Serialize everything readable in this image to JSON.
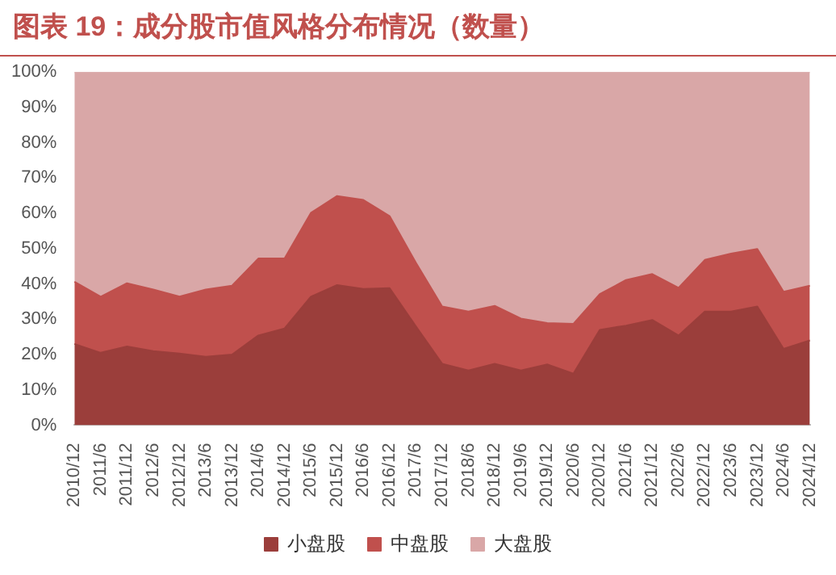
{
  "chart_data": {
    "type": "area",
    "title": "图表 19：成分股市值风格分布情况（数量）",
    "stacked": true,
    "legend": "bottom",
    "categories": [
      "2010/12",
      "2011/6",
      "2011/12",
      "2012/6",
      "2012/12",
      "2013/6",
      "2013/12",
      "2014/6",
      "2014/12",
      "2015/6",
      "2015/12",
      "2016/6",
      "2016/12",
      "2017/6",
      "2017/12",
      "2018/6",
      "2018/12",
      "2019/6",
      "2019/12",
      "2020/6",
      "2020/12",
      "2021/6",
      "2021/12",
      "2022/6",
      "2022/12",
      "2023/6",
      "2023/12",
      "2024/6",
      "2024/12"
    ],
    "ylim": [
      0,
      100
    ],
    "yticks": [
      {
        "value": 0,
        "label": "0%"
      },
      {
        "value": 10,
        "label": "10%"
      },
      {
        "value": 20,
        "label": "20%"
      },
      {
        "value": 30,
        "label": "30%"
      },
      {
        "value": 40,
        "label": "40%"
      },
      {
        "value": 50,
        "label": "50%"
      },
      {
        "value": 60,
        "label": "60%"
      },
      {
        "value": 70,
        "label": "70%"
      },
      {
        "value": 80,
        "label": "80%"
      },
      {
        "value": 90,
        "label": "90%"
      },
      {
        "value": 100,
        "label": "100%"
      }
    ],
    "series": [
      {
        "name": "小盘股",
        "color": "#9b3e3b",
        "values": [
          23,
          20.5,
          22.3,
          21,
          20.3,
          19.4,
          20,
          25.4,
          27.4,
          36.4,
          39.7,
          38.6,
          38.8,
          28,
          17.4,
          15.5,
          17.4,
          15.5,
          17.2,
          14.6,
          27,
          28.2,
          29.8,
          25.4,
          32.2,
          32.2,
          33.6,
          21.6,
          24
        ]
      },
      {
        "name": "中盘股",
        "color": "#c0504d",
        "values": [
          17.6,
          15.9,
          17.9,
          17.4,
          16.1,
          19,
          19.5,
          21.8,
          19.8,
          23.7,
          25.2,
          25.2,
          20.4,
          18,
          16.2,
          16.7,
          16.4,
          14.7,
          11.7,
          14.1,
          10.1,
          12.9,
          13,
          13.5,
          14.6,
          16.4,
          16.3,
          16.2,
          15.5
        ]
      },
      {
        "name": "大盘股",
        "color": "#d9a7a7",
        "values": [
          59.4,
          63.6,
          59.8,
          61.6,
          63.6,
          61.6,
          60.5,
          52.8,
          52.8,
          39.9,
          35.1,
          36.2,
          40.8,
          54,
          66.4,
          67.8,
          66.2,
          69.8,
          71.1,
          71.3,
          62.9,
          58.9,
          57.2,
          61.1,
          53.2,
          51.4,
          50.1,
          62.2,
          60.5
        ]
      }
    ]
  }
}
